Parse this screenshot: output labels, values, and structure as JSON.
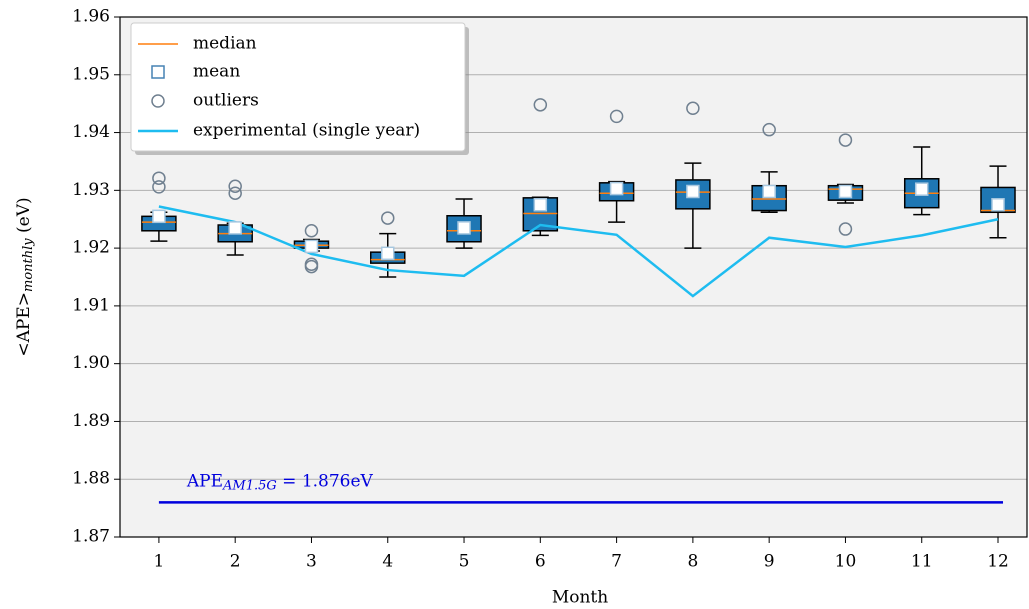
{
  "chart_data": {
    "type": "box",
    "x_label": "Month",
    "y_label": {
      "text": "<APE>",
      "sub": "monthly",
      "rest": " (eV)"
    },
    "x": [
      1,
      2,
      3,
      4,
      5,
      6,
      7,
      8,
      9,
      10,
      11,
      12
    ],
    "xlim": [
      0.49,
      12.38
    ],
    "xticks": [
      1,
      2,
      3,
      4,
      5,
      6,
      7,
      8,
      9,
      10,
      11,
      12
    ],
    "ylim": [
      1.87,
      1.96
    ],
    "yticks": [
      1.87,
      1.88,
      1.89,
      {
        "value": 1.9,
        "label": "1.90"
      },
      1.91,
      1.92,
      1.93,
      1.94,
      1.95,
      1.96
    ],
    "grid": true,
    "box_color": "#1f77b4",
    "median_color": "#ff7f0e",
    "mean_color": "#4682b4",
    "outlier_color": "#708090",
    "legend_position": "upper left",
    "legend_labels": {
      "median": "median",
      "mean": "mean",
      "outliers": "outliers"
    },
    "boxes": [
      {
        "whislo": 1.9212,
        "q1": 1.923,
        "med": 1.9245,
        "q3": 1.9255,
        "whishi": 1.9262,
        "mean": 1.9255,
        "fliers": [
          1.9321,
          1.9306
        ]
      },
      {
        "whislo": 1.9188,
        "q1": 1.9211,
        "med": 1.9225,
        "q3": 1.924,
        "whishi": 1.9243,
        "mean": 1.9235,
        "fliers": [
          1.9307,
          1.9295
        ]
      },
      {
        "whislo": 1.9195,
        "q1": 1.92,
        "med": 1.9205,
        "q3": 1.9212,
        "whishi": 1.9215,
        "mean": 1.9203,
        "fliers": [
          1.923,
          1.9172,
          1.9168
        ]
      },
      {
        "whislo": 1.915,
        "q1": 1.9174,
        "med": 1.918,
        "q3": 1.9193,
        "whishi": 1.9225,
        "mean": 1.9191,
        "fliers": [
          1.9252
        ]
      },
      {
        "whislo": 1.92,
        "q1": 1.9211,
        "med": 1.923,
        "q3": 1.9256,
        "whishi": 1.9285,
        "mean": 1.9235,
        "fliers": []
      },
      {
        "whislo": 1.9222,
        "q1": 1.923,
        "med": 1.926,
        "q3": 1.9287,
        "whishi": 1.9288,
        "mean": 1.9275,
        "fliers": [
          1.9448
        ]
      },
      {
        "whislo": 1.9245,
        "q1": 1.9282,
        "med": 1.9295,
        "q3": 1.9313,
        "whishi": 1.9315,
        "mean": 1.9303,
        "fliers": [
          1.9428
        ]
      },
      {
        "whislo": 1.92,
        "q1": 1.9268,
        "med": 1.9297,
        "q3": 1.9318,
        "whishi": 1.9347,
        "mean": 1.9298,
        "fliers": [
          1.9442
        ]
      },
      {
        "whislo": 1.9262,
        "q1": 1.9265,
        "med": 1.9285,
        "q3": 1.9308,
        "whishi": 1.9332,
        "mean": 1.9298,
        "fliers": [
          1.9405
        ]
      },
      {
        "whislo": 1.9278,
        "q1": 1.9283,
        "med": 1.9302,
        "q3": 1.9308,
        "whishi": 1.931,
        "mean": 1.9298,
        "fliers": [
          1.9387,
          1.9233
        ]
      },
      {
        "whislo": 1.9258,
        "q1": 1.927,
        "med": 1.9295,
        "q3": 1.932,
        "whishi": 1.9375,
        "mean": 1.9302,
        "fliers": []
      },
      {
        "whislo": 1.9218,
        "q1": 1.9262,
        "med": 1.9265,
        "q3": 1.9305,
        "whishi": 1.9342,
        "mean": 1.9275,
        "fliers": []
      }
    ],
    "series": [
      {
        "name": "experimental (single year)",
        "color": "#1ebcf0",
        "values": [
          1.9272,
          1.9245,
          1.919,
          1.9162,
          1.9152,
          1.924,
          1.9223,
          1.9117,
          1.9218,
          1.9202,
          1.9222,
          1.925
        ]
      }
    ],
    "reference": {
      "value": 1.876,
      "color": "#0000dd",
      "label": {
        "text": "APE",
        "sub": "AM1.5G",
        "rest": " = 1.876eV"
      }
    }
  }
}
